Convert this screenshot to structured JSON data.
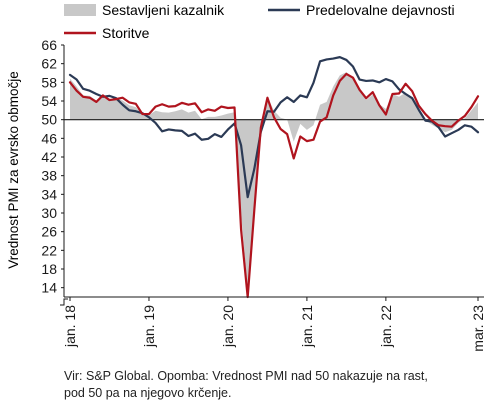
{
  "chart_data": {
    "type": "line",
    "ylabel": "Vrednost PMI za evrsko območje",
    "ylim": [
      12,
      66
    ],
    "yticks": [
      14,
      18,
      22,
      26,
      30,
      34,
      38,
      42,
      46,
      50,
      54,
      58,
      62,
      66
    ],
    "reference_line": 50,
    "grid": false,
    "legend_position": "top",
    "x_start": "2018-01",
    "x_end": "2023-03",
    "xticks": [
      {
        "label": "jan. 18",
        "date": "2018-01"
      },
      {
        "label": "jan. 19",
        "date": "2019-01"
      },
      {
        "label": "jan. 20",
        "date": "2020-01"
      },
      {
        "label": "jan. 21",
        "date": "2021-01"
      },
      {
        "label": "jan. 22",
        "date": "2022-01"
      },
      {
        "label": "mar. 23",
        "date": "2023-03"
      }
    ],
    "series": [
      {
        "name": "Sestavljeni kazalnik",
        "style": "area",
        "color": "#c8c8c8",
        "values": [
          58.8,
          57.1,
          55.2,
          55.1,
          54.1,
          54.9,
          54.3,
          54.5,
          54.1,
          53.1,
          52.7,
          51.1,
          51.0,
          51.9,
          51.6,
          51.5,
          51.8,
          52.2,
          51.5,
          51.9,
          50.1,
          50.6,
          50.6,
          50.9,
          51.3,
          51.6,
          29.7,
          13.6,
          31.9,
          48.5,
          54.9,
          51.9,
          50.4,
          50.0,
          45.3,
          49.1,
          47.8,
          48.8,
          53.2,
          53.8,
          57.1,
          59.5,
          60.2,
          59.0,
          56.2,
          54.2,
          55.4,
          53.3,
          52.3,
          55.5,
          54.9,
          55.8,
          54.8,
          52.0,
          49.9,
          48.9,
          48.1,
          47.3,
          47.8,
          49.3,
          50.3,
          52.0,
          53.7
        ]
      },
      {
        "name": "Predelovalne dejavnosti",
        "style": "line",
        "color": "#2b3a55",
        "values": [
          59.6,
          58.6,
          56.6,
          56.2,
          55.5,
          54.9,
          55.1,
          54.6,
          53.2,
          52.0,
          51.8,
          51.4,
          50.5,
          49.3,
          47.5,
          47.9,
          47.7,
          47.6,
          46.5,
          47.0,
          45.7,
          45.9,
          46.9,
          46.3,
          47.9,
          49.2,
          44.5,
          33.4,
          39.4,
          47.4,
          51.8,
          51.7,
          53.7,
          54.8,
          53.8,
          55.2,
          54.8,
          57.9,
          62.5,
          62.9,
          63.1,
          63.4,
          62.8,
          61.4,
          58.6,
          58.3,
          58.4,
          58.0,
          58.7,
          58.2,
          56.5,
          55.5,
          54.6,
          52.1,
          49.8,
          49.6,
          48.4,
          46.4,
          47.1,
          47.8,
          48.8,
          48.5,
          47.3
        ]
      },
      {
        "name": "Storitve",
        "style": "line",
        "color": "#b0141e",
        "values": [
          58.0,
          56.2,
          54.9,
          54.7,
          53.8,
          55.2,
          54.2,
          54.4,
          54.7,
          53.7,
          53.4,
          51.2,
          51.2,
          52.8,
          53.3,
          52.8,
          52.9,
          53.6,
          53.2,
          53.5,
          51.6,
          52.2,
          51.9,
          52.8,
          52.5,
          52.6,
          26.4,
          12.0,
          30.5,
          48.3,
          54.7,
          50.5,
          48.0,
          46.9,
          41.7,
          46.4,
          45.4,
          45.7,
          49.6,
          50.5,
          55.2,
          58.3,
          59.8,
          59.0,
          56.4,
          54.6,
          55.9,
          53.1,
          51.1,
          55.5,
          55.6,
          57.7,
          56.1,
          53.0,
          51.2,
          49.8,
          48.8,
          48.6,
          48.5,
          49.8,
          50.8,
          52.7,
          55.0
        ]
      }
    ]
  },
  "legend": {
    "composite": "Sestavljeni kazalnik",
    "manufacturing": "Predelovalne dejavnosti",
    "services": "Storitve"
  },
  "note": {
    "line1": "Vir: S&P Global. Opomba: Vrednost PMI nad 50 nakazuje na rast,",
    "line2": "pod 50 pa na njegovo krčenje."
  }
}
